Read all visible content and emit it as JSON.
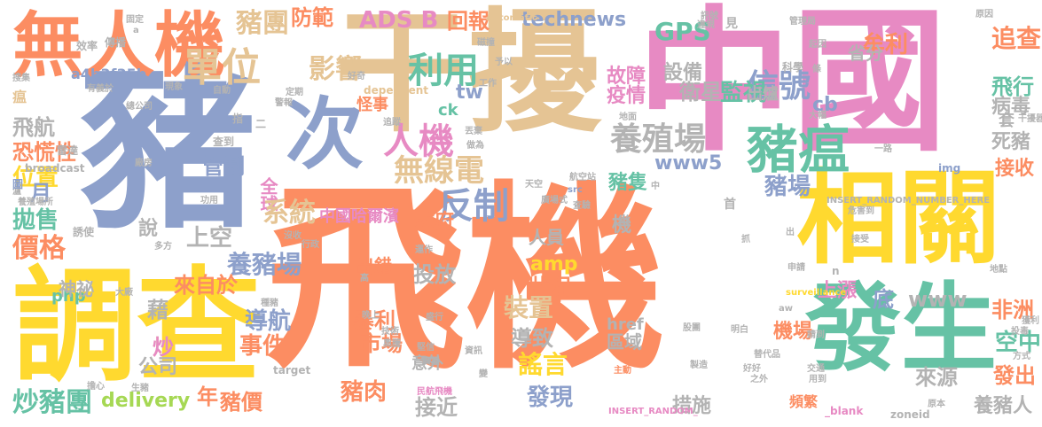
{
  "palette": {
    "orange": "#fc8d62",
    "blue": "#8da0cb",
    "green": "#66c2a5",
    "pink": "#e78ac3",
    "yellow": "#ffd92f",
    "lime": "#a6d854",
    "tan": "#e5c494",
    "gray": "#b3b3b3"
  },
  "words": [
    {
      "text": "飛機",
      "color": "orange"
    },
    {
      "text": "中國",
      "color": "pink"
    },
    {
      "text": "干擾",
      "color": "tan"
    },
    {
      "text": "豬",
      "color": "blue"
    },
    {
      "text": "調查",
      "color": "yellow"
    },
    {
      "text": "無人機",
      "color": "orange"
    },
    {
      "text": "相關",
      "color": "yellow"
    },
    {
      "text": "發生",
      "color": "green"
    },
    {
      "text": "次",
      "color": "blue"
    },
    {
      "text": "豬瘟",
      "color": "green"
    },
    {
      "text": "人機",
      "color": "pink"
    },
    {
      "text": "反制",
      "color": "blue"
    },
    {
      "text": "利用",
      "color": "green"
    },
    {
      "text": "單位",
      "color": "tan"
    },
    {
      "text": "養殖場",
      "color": "gray"
    },
    {
      "text": "信號",
      "color": "blue"
    },
    {
      "text": "無線電",
      "color": "tan"
    },
    {
      "text": "影響",
      "color": "tan"
    },
    {
      "text": "豬團",
      "color": "tan"
    },
    {
      "text": "炒",
      "color": "tan"
    },
    {
      "text": "防範",
      "color": "orange"
    },
    {
      "text": "ADS B",
      "color": "pink"
    },
    {
      "text": "回報",
      "color": "orange"
    },
    {
      "text": "technews",
      "color": "blue"
    },
    {
      "text": "GPS",
      "color": "green"
    },
    {
      "text": "牟利",
      "color": "orange"
    },
    {
      "text": "追查",
      "color": "orange"
    },
    {
      "text": "病毒",
      "color": "gray"
    },
    {
      "text": "死豬",
      "color": "gray"
    },
    {
      "text": "接收",
      "color": "orange"
    },
    {
      "text": "飛行",
      "color": "green"
    },
    {
      "text": "監視",
      "color": "green"
    },
    {
      "text": "衛星",
      "color": "gray"
    },
    {
      "text": "設備",
      "color": "gray"
    },
    {
      "text": "出爐",
      "color": "gray"
    },
    {
      "text": "疫情",
      "color": "pink"
    },
    {
      "text": "故障",
      "color": "pink"
    },
    {
      "text": "www5",
      "color": "blue"
    },
    {
      "text": "豬場",
      "color": "blue"
    },
    {
      "text": "豬隻",
      "color": "green"
    },
    {
      "text": "飛航",
      "color": "gray"
    },
    {
      "text": "恐慌性",
      "color": "orange"
    },
    {
      "text": "位置",
      "color": "yellow"
    },
    {
      "text": "管制",
      "color": "blue"
    },
    {
      "text": "全球",
      "color": "pink"
    },
    {
      "text": "系統",
      "color": "tan"
    },
    {
      "text": "拋售",
      "color": "green"
    },
    {
      "text": "價格",
      "color": "orange"
    },
    {
      "text": "養豬場",
      "color": "blue"
    },
    {
      "text": "來自於",
      "color": "orange"
    },
    {
      "text": "上空",
      "color": "gray"
    },
    {
      "text": "中國哈爾濱",
      "color": "pink"
    },
    {
      "text": "政府",
      "color": "orange"
    },
    {
      "text": "人員",
      "color": "gray"
    },
    {
      "text": "投放",
      "color": "gray"
    },
    {
      "text": "出錯",
      "color": "orange"
    },
    {
      "text": "amp",
      "color": "yellow"
    },
    {
      "text": "狀況",
      "color": "orange"
    },
    {
      "text": "裝置",
      "color": "tan"
    },
    {
      "text": "導航",
      "color": "blue"
    },
    {
      "text": "事件",
      "color": "orange"
    },
    {
      "text": "暴利",
      "color": "orange"
    },
    {
      "text": "市場",
      "color": "orange"
    },
    {
      "text": "導致",
      "color": "gray"
    },
    {
      "text": "謠言",
      "color": "yellow"
    },
    {
      "text": "公司",
      "color": "gray"
    },
    {
      "text": "年",
      "color": "orange"
    },
    {
      "text": "炒豬團",
      "color": "green"
    },
    {
      "text": "delivery",
      "color": "lime"
    },
    {
      "text": "豬價",
      "color": "orange"
    },
    {
      "text": "豬肉",
      "color": "orange"
    },
    {
      "text": "接近",
      "color": "gray"
    },
    {
      "text": "發現",
      "color": "blue"
    },
    {
      "text": "措施",
      "color": "gray"
    },
    {
      "text": "養豬人",
      "color": "gray"
    },
    {
      "text": "來源",
      "color": "gray"
    },
    {
      "text": "發出",
      "color": "orange"
    },
    {
      "text": "空中",
      "color": "green"
    },
    {
      "text": "上漲",
      "color": "pink"
    },
    {
      "text": "非洲",
      "color": "orange"
    },
    {
      "text": "www",
      "color": "gray"
    },
    {
      "text": "底",
      "color": "blue"
    },
    {
      "text": "機場",
      "color": "orange"
    },
    {
      "text": "cb",
      "color": "blue"
    },
    {
      "text": "省分",
      "color": "gray"
    },
    {
      "text": "套",
      "color": "gray"
    },
    {
      "text": "月",
      "color": "blue"
    },
    {
      "text": "說",
      "color": "gray"
    },
    {
      "text": "藉",
      "color": "gray"
    },
    {
      "text": "炒",
      "color": "pink"
    },
    {
      "text": "php",
      "color": "green"
    },
    {
      "text": "tw",
      "color": "blue"
    },
    {
      "text": "機",
      "color": "gray"
    },
    {
      "text": "區域",
      "color": "gray"
    },
    {
      "text": "href",
      "color": "gray"
    },
    {
      "text": "神祕",
      "color": "gray"
    },
    {
      "text": "a4b3f35b",
      "color": "blue"
    },
    {
      "text": "意外",
      "color": "gray"
    },
    {
      "text": "怪事",
      "color": "orange"
    },
    {
      "text": "ck",
      "color": "green"
    },
    {
      "text": "dependent",
      "color": "tan"
    },
    {
      "text": "broadcast",
      "color": "gray"
    },
    {
      "text": "Automatic",
      "color": "tan"
    },
    {
      "text": "src",
      "color": "blue"
    },
    {
      "text": "img",
      "color": "blue"
    },
    {
      "text": "surveillance",
      "color": "yellow"
    },
    {
      "text": "INSERT_RANDOM_NUMBER_HERE",
      "color": "gray"
    },
    {
      "text": "INSERT_RANDOM_",
      "color": "pink"
    },
    {
      "text": "_blank",
      "color": "pink"
    },
    {
      "text": "zoneid",
      "color": "gray"
    },
    {
      "text": "target",
      "color": "gray"
    },
    {
      "text": "頻繁",
      "color": "orange"
    },
    {
      "text": "瘟",
      "color": "tan"
    },
    {
      "text": "傳播",
      "color": "gray"
    },
    {
      "text": "效率",
      "color": "gray"
    },
    {
      "text": "固定",
      "color": "gray"
    },
    {
      "text": "有義於",
      "color": "gray"
    },
    {
      "text": "總公司",
      "color": "gray"
    },
    {
      "text": "雷達",
      "color": "gray"
    },
    {
      "text": "廠房",
      "color": "gray"
    },
    {
      "text": "功用",
      "color": "gray"
    },
    {
      "text": "誘使",
      "color": "gray"
    },
    {
      "text": "多方",
      "color": "gray"
    },
    {
      "text": "大廠",
      "color": "gray"
    },
    {
      "text": "主動",
      "color": "orange"
    },
    {
      "text": "生豬",
      "color": "gray"
    },
    {
      "text": "擔心",
      "color": "gray"
    },
    {
      "text": "民航飛機",
      "color": "pink"
    },
    {
      "text": "盛行",
      "color": "gray"
    },
    {
      "text": "晚上",
      "color": "gray"
    },
    {
      "text": "堅信",
      "color": "gray"
    },
    {
      "text": "廣播",
      "color": "gray"
    },
    {
      "text": "變",
      "color": "gray"
    },
    {
      "text": "資訊",
      "color": "gray"
    },
    {
      "text": "股團",
      "color": "gray"
    },
    {
      "text": "明白",
      "color": "gray"
    },
    {
      "text": "替代品",
      "color": "gray"
    },
    {
      "text": "好好",
      "color": "gray"
    },
    {
      "text": "交通",
      "color": "gray"
    },
    {
      "text": "用到",
      "color": "gray"
    },
    {
      "text": "原本",
      "color": "gray"
    },
    {
      "text": "方式",
      "color": "gray"
    },
    {
      "text": "投毒",
      "color": "gray"
    },
    {
      "text": "地點",
      "color": "gray"
    },
    {
      "text": "申請",
      "color": "gray"
    },
    {
      "text": "接受",
      "color": "gray"
    },
    {
      "text": "抓",
      "color": "gray"
    },
    {
      "text": "危害到",
      "color": "gray"
    },
    {
      "text": "首",
      "color": "gray"
    },
    {
      "text": "航空站",
      "color": "gray"
    },
    {
      "text": "天空",
      "color": "gray"
    },
    {
      "text": "地面",
      "color": "gray"
    },
    {
      "text": "科學",
      "color": "gray"
    },
    {
      "text": "起因",
      "color": "gray"
    },
    {
      "text": "管理局",
      "color": "gray"
    },
    {
      "text": "訊號",
      "color": "gray"
    },
    {
      "text": "見",
      "color": "gray"
    },
    {
      "text": "原因",
      "color": "gray"
    },
    {
      "text": "工作",
      "color": "gray"
    },
    {
      "text": "磁撞",
      "color": "gray"
    },
    {
      "text": "予以",
      "color": "gray"
    },
    {
      "text": "好奇",
      "color": "gray"
    },
    {
      "text": "丟棄",
      "color": "gray"
    },
    {
      "text": "做為",
      "color": "gray"
    },
    {
      "text": "追蹤",
      "color": "gray"
    },
    {
      "text": "定期",
      "color": "gray"
    },
    {
      "text": "自動",
      "color": "gray"
    },
    {
      "text": "現象",
      "color": "gray"
    },
    {
      "text": "搜集",
      "color": "gray"
    },
    {
      "text": "警報",
      "color": "gray"
    },
    {
      "text": "查到",
      "color": "gray"
    },
    {
      "text": "指",
      "color": "gray"
    },
    {
      "text": "二",
      "color": "gray"
    },
    {
      "text": "一路",
      "color": "gray"
    },
    {
      "text": "大幅",
      "color": "gray"
    },
    {
      "text": "干擾器",
      "color": "gray"
    },
    {
      "text": "養殖場所",
      "color": "gray"
    },
    {
      "text": "瀘",
      "color": "gray"
    },
    {
      "text": "行政",
      "color": "gray"
    },
    {
      "text": "高",
      "color": "gray"
    },
    {
      "text": "運作",
      "color": "gray"
    },
    {
      "text": "沒收",
      "color": "gray"
    },
    {
      "text": "種豬",
      "color": "gray"
    },
    {
      "text": "技術",
      "color": "gray"
    },
    {
      "text": "奧騰",
      "color": "gray"
    },
    {
      "text": "廣場式",
      "color": "gray"
    },
    {
      "text": "查驗",
      "color": "gray"
    },
    {
      "text": "中",
      "color": "gray"
    },
    {
      "text": "n",
      "color": "gray"
    },
    {
      "text": "aw",
      "color": "gray"
    },
    {
      "text": "請到",
      "color": "gray"
    },
    {
      "text": "違規",
      "color": "gray"
    },
    {
      "text": "a",
      "color": "gray"
    },
    {
      "text": "出",
      "color": "gray"
    },
    {
      "text": "之外",
      "color": "gray"
    },
    {
      "text": "製造",
      "color": "gray"
    },
    {
      "text": "廣播",
      "color": "gray"
    },
    {
      "text": "圖",
      "color": "blue"
    },
    {
      "text": "獲利",
      "color": "gray"
    },
    {
      "text": "條",
      "color": "gray"
    }
  ]
}
